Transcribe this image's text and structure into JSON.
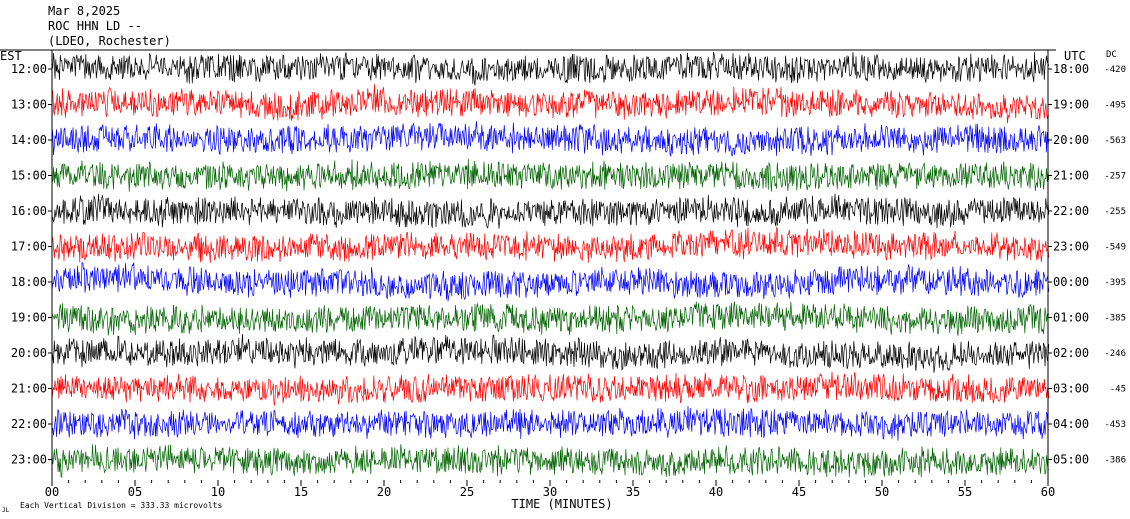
{
  "header": {
    "date": "Mar 8,2025",
    "station": "ROC HHN LD --",
    "network": "(LDEO, Rochester)"
  },
  "labels": {
    "left_tz": "EST",
    "right_tz": "UTC",
    "dc_header": "DC",
    "xlabel": "TIME (MINUTES)",
    "footnote": "Each Vertical Division =  333.33 microvolts",
    "corner_mark": "JL"
  },
  "chart_data": {
    "type": "line",
    "title": "ROC HHN LD --",
    "xlabel": "TIME (MINUTES)",
    "xlim": [
      0,
      60
    ],
    "x_ticks": [
      "00",
      "05",
      "10",
      "15",
      "20",
      "25",
      "30",
      "35",
      "40",
      "45",
      "50",
      "55",
      "60"
    ],
    "x_tick_values": [
      0,
      5,
      10,
      15,
      20,
      25,
      30,
      35,
      40,
      45,
      50,
      55,
      60
    ],
    "colors": [
      "#000000",
      "#ff0000",
      "#0000ff",
      "#006400"
    ],
    "rows": [
      {
        "est": "12:00",
        "utc": "18:00",
        "dc": "-420"
      },
      {
        "est": "13:00",
        "utc": "19:00",
        "dc": "-495"
      },
      {
        "est": "14:00",
        "utc": "20:00",
        "dc": "-563"
      },
      {
        "est": "15:00",
        "utc": "21:00",
        "dc": "-257"
      },
      {
        "est": "16:00",
        "utc": "22:00",
        "dc": "-255"
      },
      {
        "est": "17:00",
        "utc": "23:00",
        "dc": "-549"
      },
      {
        "est": "18:00",
        "utc": "00:00",
        "dc": "-395"
      },
      {
        "est": "19:00",
        "utc": "01:00",
        "dc": "-385"
      },
      {
        "est": "20:00",
        "utc": "02:00",
        "dc": "-246"
      },
      {
        "est": "21:00",
        "utc": "03:00",
        "dc": "-45"
      },
      {
        "est": "22:00",
        "utc": "04:00",
        "dc": "-453"
      },
      {
        "est": "23:00",
        "utc": "05:00",
        "dc": "-386"
      }
    ]
  }
}
